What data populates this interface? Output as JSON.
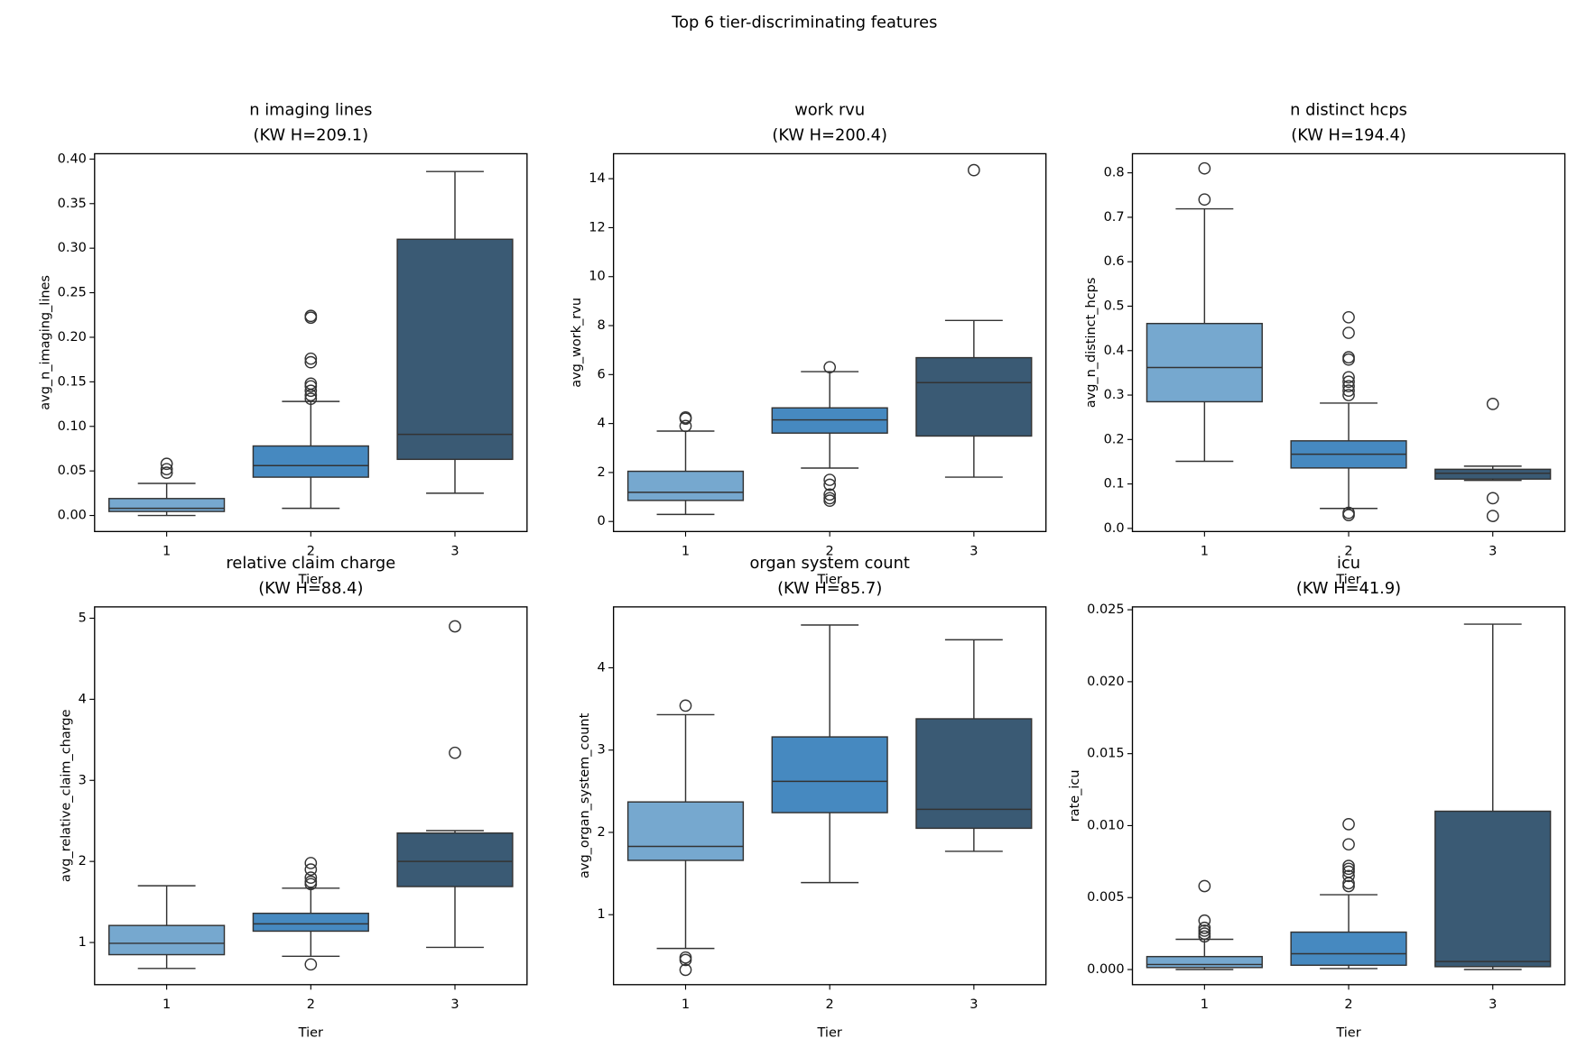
{
  "title": "Top 6 tier-discriminating features",
  "chart_data": [
    {
      "type": "box",
      "title": "n imaging lines",
      "subtitle": "(KW H=209.1)",
      "x_label": "Tier",
      "y_label": "avg_n_imaging_lines",
      "categories": [
        "1",
        "2",
        "3"
      ],
      "colors": [
        "#76a8cf",
        "#4689c0",
        "#3a5a74"
      ],
      "ylim": [
        -0.018,
        0.406
      ],
      "yticks": [
        {
          "value": 0,
          "label": "0.00"
        },
        0.05,
        {
          "value": 0.1,
          "label": "0.10"
        },
        0.15,
        {
          "value": 0.2,
          "label": "0.20"
        },
        0.25,
        {
          "value": 0.3,
          "label": "0.30"
        },
        0.35,
        {
          "value": 0.4,
          "label": "0.40"
        }
      ],
      "boxes": [
        {
          "whislo": 0.0,
          "q1": 0.0045,
          "median": 0.008,
          "q3": 0.019,
          "whishi": 0.036,
          "fliers": [
            0.048,
            0.052,
            0.058
          ]
        },
        {
          "whislo": 0.008,
          "q1": 0.043,
          "median": 0.056,
          "q3": 0.078,
          "whishi": 0.128,
          "fliers": [
            0.131,
            0.135,
            0.14,
            0.145,
            0.148,
            0.172,
            0.176,
            0.222,
            0.224
          ]
        },
        {
          "whislo": 0.025,
          "q1": 0.063,
          "median": 0.091,
          "q3": 0.31,
          "whishi": 0.386,
          "fliers": []
        }
      ]
    },
    {
      "type": "box",
      "title": "work rvu",
      "subtitle": "(KW H=200.4)",
      "x_label": "Tier",
      "y_label": "avg_work_rvu",
      "categories": [
        "1",
        "2",
        "3"
      ],
      "colors": [
        "#76a8cf",
        "#4689c0",
        "#3a5a74"
      ],
      "ylim": [
        -0.41,
        15.02
      ],
      "yticks": [
        0,
        2,
        4,
        6,
        8,
        10,
        12,
        14
      ],
      "boxes": [
        {
          "whislo": 0.29,
          "q1": 0.86,
          "median": 1.19,
          "q3": 2.05,
          "whishi": 3.69,
          "fliers": [
            3.9,
            4.2,
            4.25
          ]
        },
        {
          "whislo": 2.18,
          "q1": 3.61,
          "median": 4.15,
          "q3": 4.64,
          "whishi": 6.12,
          "fliers": [
            6.3,
            1.7,
            1.5,
            1.1,
            0.95,
            0.85
          ]
        },
        {
          "whislo": 1.81,
          "q1": 3.49,
          "median": 5.67,
          "q3": 6.69,
          "whishi": 8.21,
          "fliers": [
            14.35
          ]
        }
      ]
    },
    {
      "type": "box",
      "title": "n distinct hcps",
      "subtitle": "(KW H=194.4)",
      "x_label": "Tier",
      "y_label": "avg_n_distinct_hcps",
      "categories": [
        "1",
        "2",
        "3"
      ],
      "colors": [
        "#76a8cf",
        "#4689c0",
        "#3a5a74"
      ],
      "ylim": [
        -0.007,
        0.843
      ],
      "yticks": [
        {
          "value": 0,
          "label": "0.0"
        },
        0.1,
        0.2,
        0.3,
        0.4,
        0.5,
        0.6,
        0.7,
        0.8
      ],
      "boxes": [
        {
          "whislo": 0.151,
          "q1": 0.285,
          "median": 0.362,
          "q3": 0.461,
          "whishi": 0.719,
          "fliers": [
            0.74,
            0.81
          ]
        },
        {
          "whislo": 0.045,
          "q1": 0.136,
          "median": 0.167,
          "q3": 0.197,
          "whishi": 0.282,
          "fliers": [
            0.3,
            0.31,
            0.32,
            0.33,
            0.34,
            0.38,
            0.385,
            0.44,
            0.475,
            0.035,
            0.03
          ]
        },
        {
          "whislo": 0.108,
          "q1": 0.111,
          "median": 0.124,
          "q3": 0.133,
          "whishi": 0.14,
          "fliers": [
            0.28,
            0.068,
            0.028
          ]
        }
      ]
    },
    {
      "type": "box",
      "title": "relative claim charge",
      "subtitle": "(KW H=88.4)",
      "x_label": "Tier",
      "y_label": "avg_relative_claim_charge",
      "categories": [
        "1",
        "2",
        "3"
      ],
      "colors": [
        "#76a8cf",
        "#4689c0",
        "#3a5a74"
      ],
      "ylim": [
        0.48,
        5.14
      ],
      "yticks": [
        1,
        2,
        3,
        4,
        5
      ],
      "boxes": [
        {
          "whislo": 0.68,
          "q1": 0.85,
          "median": 0.99,
          "q3": 1.21,
          "whishi": 1.7,
          "fliers": []
        },
        {
          "whislo": 0.83,
          "q1": 1.14,
          "median": 1.23,
          "q3": 1.36,
          "whishi": 1.67,
          "fliers": [
            1.72,
            1.75,
            1.8,
            1.9,
            1.98,
            0.73
          ]
        },
        {
          "whislo": 0.94,
          "q1": 1.69,
          "median": 2.0,
          "q3": 2.35,
          "whishi": 2.38,
          "fliers": [
            3.34,
            4.9
          ]
        }
      ]
    },
    {
      "type": "box",
      "title": "organ system count",
      "subtitle": "(KW H=85.7)",
      "x_label": "Tier",
      "y_label": "avg_organ_system_count",
      "categories": [
        "1",
        "2",
        "3"
      ],
      "colors": [
        "#76a8cf",
        "#4689c0",
        "#3a5a74"
      ],
      "ylim": [
        0.15,
        4.74
      ],
      "yticks": [
        1,
        2,
        3,
        4
      ],
      "boxes": [
        {
          "whislo": 0.59,
          "q1": 1.66,
          "median": 1.83,
          "q3": 2.37,
          "whishi": 3.43,
          "fliers": [
            3.54,
            0.48,
            0.45,
            0.33
          ]
        },
        {
          "whislo": 1.39,
          "q1": 2.24,
          "median": 2.62,
          "q3": 3.16,
          "whishi": 4.52,
          "fliers": []
        },
        {
          "whislo": 1.77,
          "q1": 2.05,
          "median": 2.28,
          "q3": 3.38,
          "whishi": 4.34,
          "fliers": []
        }
      ]
    },
    {
      "type": "box",
      "title": "icu",
      "subtitle": "(KW H=41.9)",
      "x_label": "Tier",
      "y_label": "rate_icu",
      "categories": [
        "1",
        "2",
        "3"
      ],
      "colors": [
        "#76a8cf",
        "#4689c0",
        "#3a5a74"
      ],
      "ylim": [
        -0.00105,
        0.0252
      ],
      "yticks": [
        {
          "value": 0,
          "label": "0.000"
        },
        0.005,
        {
          "value": 0.01,
          "label": "0.010"
        },
        0.015,
        {
          "value": 0.02,
          "label": "0.020"
        },
        0.025
      ],
      "boxes": [
        {
          "whislo": 0.0,
          "q1": 0.00014,
          "median": 0.00035,
          "q3": 0.0009,
          "whishi": 0.0021,
          "fliers": [
            0.0023,
            0.0025,
            0.0027,
            0.0029,
            0.0034,
            0.0058
          ]
        },
        {
          "whislo": 7e-05,
          "q1": 0.0003,
          "median": 0.0011,
          "q3": 0.0026,
          "whishi": 0.0052,
          "fliers": [
            0.0058,
            0.006,
            0.0065,
            0.0068,
            0.007,
            0.0072,
            0.0087,
            0.0101
          ]
        },
        {
          "whislo": 0.0,
          "q1": 0.0002,
          "median": 0.00056,
          "q3": 0.011,
          "whishi": 0.024,
          "fliers": []
        }
      ]
    }
  ]
}
